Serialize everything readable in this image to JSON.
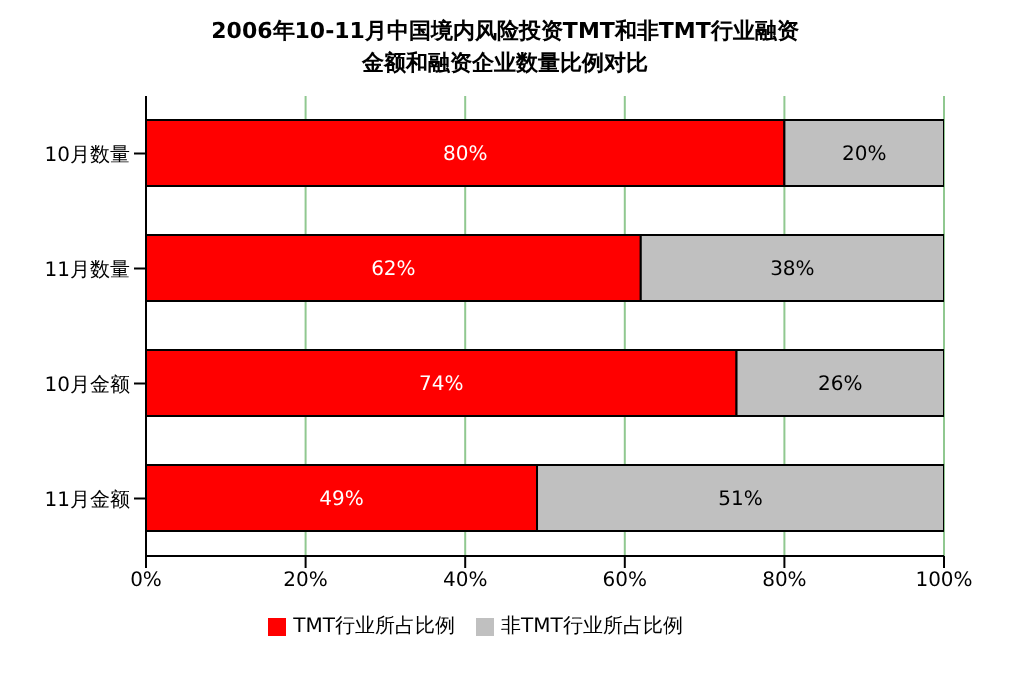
{
  "chart_data": {
    "type": "bar",
    "orientation": "horizontal",
    "stacked": true,
    "title": "2006年10-11月中国境内风险投资TMT和非TMT行业融资金额和融资企业数量比例对比",
    "categories": [
      "10月数量",
      "11月数量",
      "10月金额",
      "11月金额"
    ],
    "series": [
      {
        "name": "TMT行业所占比例",
        "color": "#ff0000",
        "values": [
          80,
          62,
          74,
          49
        ],
        "value_labels": [
          "80%",
          "62%",
          "74%",
          "49%"
        ]
      },
      {
        "name": "非TMT行业所占比例",
        "color": "#c0c0c0",
        "values": [
          20,
          38,
          26,
          51
        ],
        "value_labels": [
          "20%",
          "38%",
          "26%",
          "51%"
        ]
      }
    ],
    "xlim": [
      0,
      100
    ],
    "xticks": [
      {
        "value": 0,
        "label": "0%"
      },
      {
        "value": 20,
        "label": "20%"
      },
      {
        "value": 40,
        "label": "40%"
      },
      {
        "value": 60,
        "label": "60%"
      },
      {
        "value": 80,
        "label": "80%"
      },
      {
        "value": 100,
        "label": "100%"
      }
    ],
    "grid": "x",
    "legend": "bottom"
  }
}
